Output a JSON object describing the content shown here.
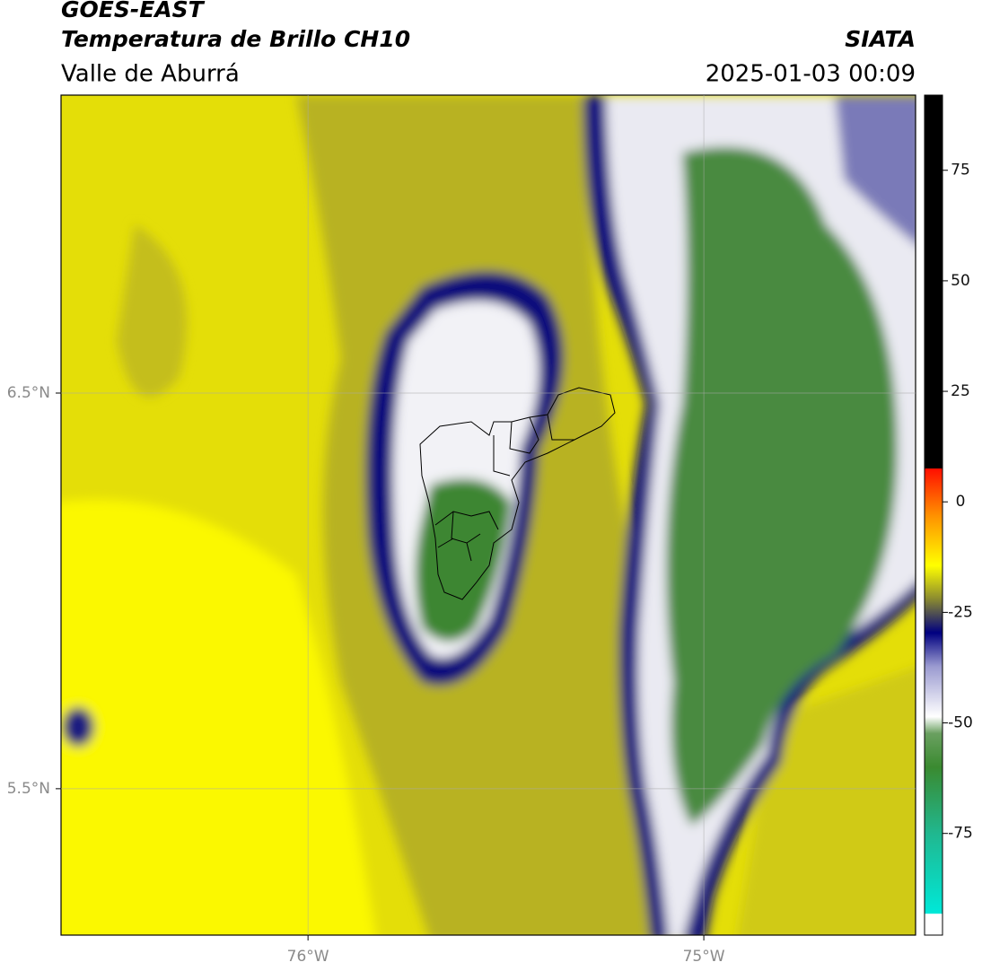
{
  "header": {
    "satellite": "GOES-EAST",
    "product": "Temperatura de Brillo CH10",
    "region": "Valle de Aburrá",
    "source": "SIATA",
    "datetime": "2025-01-03 00:09"
  },
  "map": {
    "xlim": [
      -76.624,
      -74.465
    ],
    "ylim": [
      5.13,
      7.253
    ],
    "xticks": [
      {
        "value": -76,
        "label": "76°W"
      },
      {
        "value": -75,
        "label": "75°W"
      }
    ],
    "yticks": [
      {
        "value": 6.5,
        "label": "6.5°N"
      },
      {
        "value": 5.5,
        "label": "5.5°N"
      }
    ],
    "grid": true
  },
  "colorbar": {
    "lim": [
      -98,
      92
    ],
    "ticks": [
      75,
      50,
      25,
      0,
      -25,
      -50,
      -75
    ]
  }
}
